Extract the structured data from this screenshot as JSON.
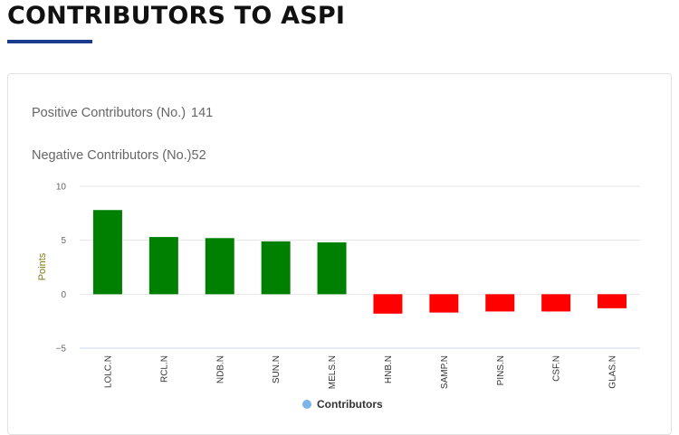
{
  "page": {
    "title": "CONTRIBUTORS TO ASPI",
    "accent_color": "#1c3c8e"
  },
  "stats": {
    "positive_label": "Positive Contributors (No.)",
    "positive_value": "141",
    "negative_label": "Negative Contributors (No.)",
    "negative_value": "52"
  },
  "chart_data": {
    "type": "bar",
    "title": "",
    "xlabel": "",
    "ylabel": "Points",
    "ylim": [
      -5,
      10
    ],
    "yticks": [
      10,
      5,
      0,
      -5
    ],
    "grid": true,
    "legend_position": "bottom-center",
    "categories": [
      "LOLC.N",
      "RCL.N",
      "NDB.N",
      "SUN.N",
      "MELS.N",
      "HNB.N",
      "SAMP.N",
      "PINS.N",
      "CSF.N",
      "GLAS.N"
    ],
    "series": [
      {
        "name": "Contributors",
        "values": [
          7.8,
          5.3,
          5.2,
          4.9,
          4.8,
          -1.8,
          -1.7,
          -1.6,
          -1.6,
          -1.3
        ]
      }
    ],
    "colors": {
      "positive": "#008000",
      "negative": "#ff0000",
      "legend": "#7cb5ec",
      "grid": "#e6e6e6",
      "axis": "#ccd6eb"
    }
  }
}
